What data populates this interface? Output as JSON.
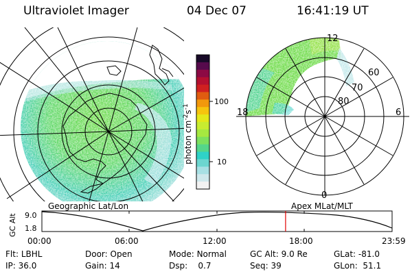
{
  "header": {
    "instrument": "Ultraviolet Imager",
    "date": "04 Dec 07",
    "time": "16:41:19 UT"
  },
  "left_map": {
    "label": "Geographic Lat/Lon",
    "grid_circles": 5
  },
  "right_map": {
    "label": "Apex MLat/MLT",
    "latitude_labels": [
      "60",
      "70",
      "80"
    ],
    "mlt_labels": {
      "top": "12",
      "left": "18",
      "right": "6",
      "bottom": "0"
    }
  },
  "colorbar": {
    "label": "photon cm",
    "label_exp1": "-2",
    "label_mid": "s",
    "label_exp2": "-1",
    "tick_labels": [
      "100",
      "10"
    ],
    "colors": [
      "#f2f2f2",
      "#cfe8ec",
      "#a8e0e4",
      "#6cd6d0",
      "#2fd2c8",
      "#55d68a",
      "#7de05e",
      "#a6e840",
      "#c8ec30",
      "#e4e81a",
      "#f6c40e",
      "#f2980c",
      "#e05c10",
      "#d02020",
      "#b41030",
      "#8c0a44",
      "#560a4c",
      "#180a28"
    ]
  },
  "altitude_plot": {
    "ylabel": "GC Alt",
    "y_ticks": [
      "9.0",
      "1.8"
    ],
    "x_ticks": [
      "00:00",
      "06:00",
      "12:00",
      "18:00",
      "23:59"
    ],
    "current_time_hours": 16.69
  },
  "info": {
    "row1": [
      {
        "label": "Flt:",
        "value": "LBHL"
      },
      {
        "label": "Door:",
        "value": "Open"
      },
      {
        "label": "Mode:",
        "value": "Normal"
      },
      {
        "label": "GC Alt:",
        "value": "9.0 Re"
      },
      {
        "label": "GLat:",
        "value": "-81.0"
      }
    ],
    "row2": [
      {
        "label": "IP:",
        "value": "36.0"
      },
      {
        "label": "Gain:",
        "value": "14"
      },
      {
        "label": "Dsp:",
        "value": "0.7"
      },
      {
        "label": "Seq:",
        "value": "39"
      },
      {
        "label": "GLon:",
        "value": "51.1"
      }
    ]
  },
  "colors": {
    "marker": "#e00000"
  }
}
